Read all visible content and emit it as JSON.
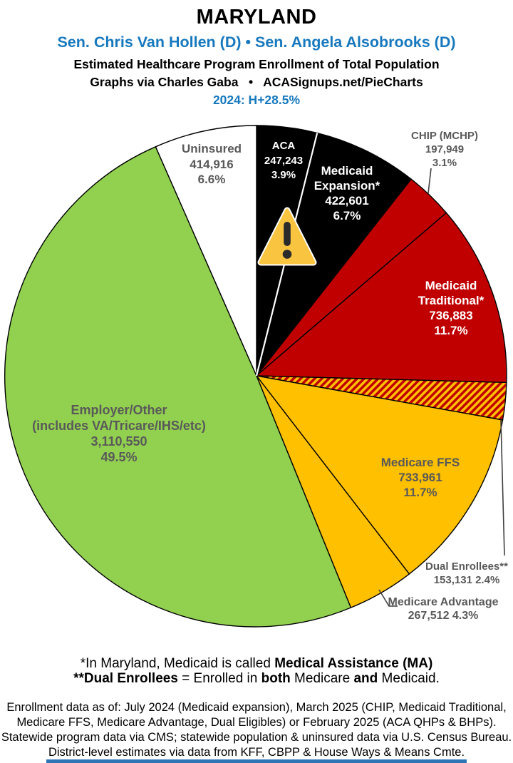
{
  "header": {
    "state": "MARYLAND",
    "senators": "Sen. Chris Van Hollen (D) • Sen. Angela Alsobrooks (D)",
    "subtitle1": "Estimated Healthcare Program Enrollment of Total Population",
    "subtitle2": "Graphs via Charles Gaba   •   ACASignups.net/PieCharts",
    "partisan_lean": "2024: H+28.5%"
  },
  "colors": {
    "accent_blue": "#1778BE",
    "pie_black": "#000000",
    "pie_red": "#C00000",
    "pie_gold": "#FFC000",
    "pie_green": "#92D050",
    "pie_white": "#FFFFFF",
    "label_gray": "#595959",
    "footer_bar_blue": "#2E75B6"
  },
  "chart_data": {
    "type": "pie",
    "title": "Estimated Healthcare Program Enrollment of Total Population",
    "start_angle_deg": 0,
    "direction": "clockwise",
    "total_pct": 99.9,
    "slices": [
      {
        "id": "aca",
        "label": "ACA",
        "value": 247243,
        "pct": 3.9,
        "fill": "#000000",
        "label_placement": "inside",
        "display_lines": [
          "ACA",
          "247,243",
          "3.9%"
        ]
      },
      {
        "id": "medicaid-expansion",
        "label": "Medicaid Expansion*",
        "value": 422601,
        "pct": 6.7,
        "fill": "#000000",
        "label_placement": "inside",
        "display_lines": [
          "Medicaid",
          "Expansion*",
          "422,601",
          "6.7%"
        ]
      },
      {
        "id": "chip",
        "label": "CHIP (MCHP)",
        "value": 197949,
        "pct": 3.1,
        "fill": "#C00000",
        "label_placement": "outside-callout",
        "display_lines": [
          "CHIP (MCHP)",
          "197,949",
          "3.1%"
        ]
      },
      {
        "id": "medicaid-traditional",
        "label": "Medicaid Traditional*",
        "value": 736883,
        "pct": 11.7,
        "fill": "#C00000",
        "label_placement": "inside",
        "display_lines": [
          "Medicaid",
          "Traditional*",
          "736,883",
          "11.7%"
        ]
      },
      {
        "id": "dual-enrollees",
        "label": "Dual Enrollees**",
        "value": 153131,
        "pct": 2.4,
        "fill": "hatch",
        "hatch_colors": [
          "#C00000",
          "#FFC000"
        ],
        "label_placement": "outside-callout",
        "display_lines": [
          "Dual Enrollees**",
          "153,131 2.4%"
        ]
      },
      {
        "id": "medicare-ffs",
        "label": "Medicare FFS",
        "value": 733961,
        "pct": 11.7,
        "fill": "#FFC000",
        "label_placement": "inside",
        "display_lines": [
          "Medicare FFS",
          "733,961",
          "11.7%"
        ]
      },
      {
        "id": "medicare-advantage",
        "label": "Medicare Advantage",
        "value": 267512,
        "pct": 4.3,
        "fill": "#FFC000",
        "label_placement": "outside-callout",
        "display_lines": [
          "Medicare Advantage",
          "267,512 4.3%"
        ]
      },
      {
        "id": "employer-other",
        "label": "Employer/Other (includes VA/Tricare/IHS/etc)",
        "value": 3110550,
        "pct": 49.5,
        "fill": "#92D050",
        "label_placement": "inside",
        "display_lines": [
          "Employer/Other",
          "(includes VA/Tricare/IHS/etc)",
          "3,110,550",
          "49.5%"
        ]
      },
      {
        "id": "uninsured",
        "label": "Uninsured",
        "value": 414916,
        "pct": 6.6,
        "fill": "#FFFFFF",
        "label_placement": "inside",
        "display_lines": [
          "Uninsured",
          "414,916",
          "6.6%"
        ]
      }
    ],
    "annotation_icon": "warning-triangle over ACA / Medicaid Expansion boundary"
  },
  "footnotes": {
    "note1": {
      "prefix": "*In Maryland, Medicaid is called ",
      "bold": "Medical Assistance (MA)"
    },
    "note2": {
      "bold1": "**Dual Enrollees",
      "mid1": " = Enrolled in ",
      "bold2": "both",
      "mid2": " Medicare ",
      "bold3": "and",
      "end": " Medicaid."
    },
    "data_lines": [
      "Enrollment data as of: July 2024 (Medicaid expansion), March 2025 (CHIP, Medicaid Traditional,",
      "Medicare FFS, Medicare Advantage, Dual Eligibles) or February 2025 (ACA QHPs & BHPs).",
      "Statewide program data via CMS; statewide population & uninsured data via U.S. Census Bureau.",
      "District-level estimates via data from KFF, CBPP & House Ways & Means Cmte."
    ]
  }
}
